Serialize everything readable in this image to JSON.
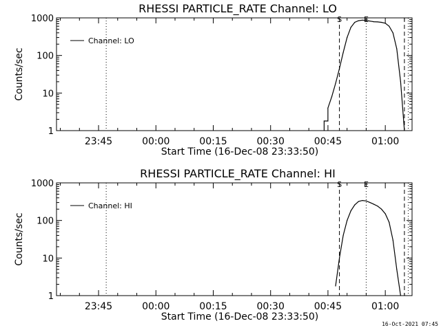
{
  "footer": {
    "timestamp": "16-Oct-2021 07:45"
  },
  "chart_data": [
    {
      "type": "line",
      "title": "RHESSI PARTICLE_RATE Channel: LO",
      "xlabel": "Start Time (16-Dec-08 23:33:50)",
      "ylabel": "Counts/sec",
      "y_scale": "log",
      "ylim": [
        1,
        1000
      ],
      "y_ticks": [
        1,
        10,
        100,
        1000
      ],
      "y_tick_labels": [
        "1",
        "10",
        "100",
        "1000"
      ],
      "x_range": [
        "23:34",
        "01:07"
      ],
      "x_ticks": [
        "23:45",
        "00:00",
        "00:15",
        "00:30",
        "00:45",
        "01:00"
      ],
      "legend": {
        "position": "top-left",
        "entries": [
          {
            "label": "Channel: LO",
            "style": "solid"
          }
        ]
      },
      "markers": [
        {
          "time": "23:47",
          "style": "dotted",
          "label": ""
        },
        {
          "time": "00:48",
          "style": "dashed",
          "label": "S"
        },
        {
          "time": "00:55",
          "style": "dotted",
          "label": "E"
        },
        {
          "time": "01:05",
          "style": "dashed",
          "label": ""
        },
        {
          "time": "01:06",
          "style": "dotted",
          "label": ""
        }
      ],
      "series": [
        {
          "name": "Channel: LO",
          "points": [
            [
              "00:44",
              1
            ],
            [
              "00:44",
              1.8
            ],
            [
              "00:45",
              1.8
            ],
            [
              "00:45",
              4
            ],
            [
              "00:46",
              8
            ],
            [
              "00:47",
              18
            ],
            [
              "00:48",
              45
            ],
            [
              "00:49",
              120
            ],
            [
              "00:50",
              300
            ],
            [
              "00:51",
              560
            ],
            [
              "00:52",
              760
            ],
            [
              "00:53",
              840
            ],
            [
              "00:54",
              870
            ],
            [
              "00:55",
              860
            ],
            [
              "00:56",
              820
            ],
            [
              "00:57",
              790
            ],
            [
              "00:58",
              780
            ],
            [
              "00:59",
              760
            ],
            [
              "01:00",
              720
            ],
            [
              "01:01",
              600
            ],
            [
              "01:02",
              400
            ],
            [
              "01:03",
              150
            ],
            [
              "01:04",
              20
            ],
            [
              "01:05",
              1
            ]
          ]
        }
      ]
    },
    {
      "type": "line",
      "title": "RHESSI PARTICLE_RATE Channel: HI",
      "xlabel": "Start Time (16-Dec-08 23:33:50)",
      "ylabel": "Counts/sec",
      "y_scale": "log",
      "ylim": [
        1,
        1000
      ],
      "y_ticks": [
        1,
        10,
        100,
        1000
      ],
      "y_tick_labels": [
        "1",
        "10",
        "100",
        "1000"
      ],
      "x_range": [
        "23:34",
        "01:07"
      ],
      "x_ticks": [
        "23:45",
        "00:00",
        "00:15",
        "00:30",
        "00:45",
        "01:00"
      ],
      "legend": {
        "position": "top-left",
        "entries": [
          {
            "label": "Channel: HI",
            "style": "solid"
          }
        ]
      },
      "markers": [
        {
          "time": "23:47",
          "style": "dotted",
          "label": ""
        },
        {
          "time": "00:48",
          "style": "dashed",
          "label": "S"
        },
        {
          "time": "00:55",
          "style": "dotted",
          "label": "E"
        },
        {
          "time": "01:05",
          "style": "dashed",
          "label": ""
        },
        {
          "time": "01:06",
          "style": "dotted",
          "label": ""
        }
      ],
      "series": [
        {
          "name": "Channel: HI",
          "points": [
            [
              "00:47",
              1.8
            ],
            [
              "00:48",
              10
            ],
            [
              "00:49",
              40
            ],
            [
              "00:50",
              100
            ],
            [
              "00:51",
              180
            ],
            [
              "00:52",
              260
            ],
            [
              "00:53",
              320
            ],
            [
              "00:54",
              340
            ],
            [
              "00:55",
              330
            ],
            [
              "00:56",
              300
            ],
            [
              "00:57",
              270
            ],
            [
              "00:58",
              240
            ],
            [
              "00:59",
              200
            ],
            [
              "01:00",
              150
            ],
            [
              "01:01",
              90
            ],
            [
              "01:02",
              30
            ],
            [
              "01:03",
              5
            ],
            [
              "01:04",
              1
            ]
          ]
        }
      ]
    }
  ]
}
